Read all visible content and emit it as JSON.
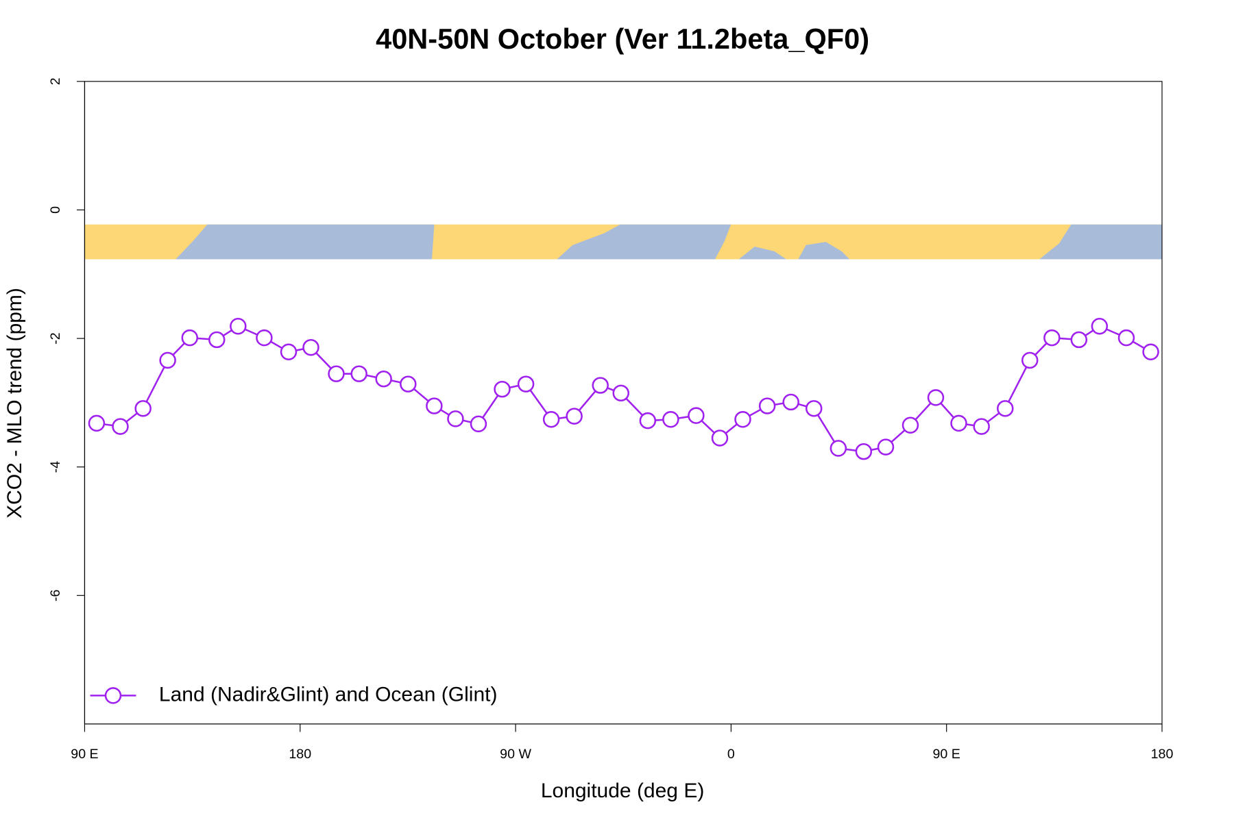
{
  "chart_data": {
    "type": "line",
    "title": "40N-50N October (Ver 11.2beta_QF0)",
    "x_label": "Longitude (deg E)",
    "y_label": "XCO2 - MLO trend (ppm)",
    "xlim": [
      90,
      540
    ],
    "xticks": [
      {
        "value": 90,
        "label": "90 E"
      },
      180,
      {
        "value": 270,
        "label": "90 W"
      },
      {
        "value": 360,
        "label": "0"
      },
      {
        "value": 450,
        "label": "90 E"
      },
      {
        "value": 540,
        "label": "180"
      }
    ],
    "ylim": [
      -8,
      2
    ],
    "yticks": [
      2,
      0,
      -2,
      -4,
      -6
    ],
    "legend": "bottomleft",
    "series": [
      {
        "name": "Land (Nadir&Glint) and Ocean (Glint)",
        "color": "#a020f0",
        "x": [
          95,
          104.9,
          114.4,
          124.7,
          133.9,
          145.2,
          154.1,
          165,
          175.2,
          184.5,
          195.1,
          204.6,
          214.9,
          225.1,
          236,
          244.9,
          254.5,
          264.4,
          274.3,
          284.9,
          294.5,
          305.4,
          314,
          325.2,
          334.8,
          345.4,
          355.3,
          364.9,
          375.1,
          385,
          394.6,
          404.8,
          415.4,
          424.6,
          434.9,
          445.5,
          455.1,
          464.6,
          474.5,
          484.8,
          494,
          505.3,
          513.9,
          525.1,
          535.3
        ],
        "values": [
          -3.32,
          -3.37,
          -3.09,
          -2.34,
          -1.99,
          -2.02,
          -1.81,
          -1.99,
          -2.21,
          -2.14,
          -2.55,
          -2.55,
          -2.63,
          -2.71,
          -3.05,
          -3.25,
          -3.33,
          -2.79,
          -2.71,
          -3.26,
          -3.21,
          -2.73,
          -2.85,
          -3.28,
          -3.26,
          -3.2,
          -3.55,
          -3.26,
          -3.05,
          -2.99,
          -3.09,
          -3.71,
          -3.76,
          -3.69,
          -3.35,
          -2.92,
          -3.32,
          -3.37,
          -3.09,
          -2.34,
          -1.99,
          -2.02,
          -1.81,
          -1.99,
          -2.21
        ]
      }
    ]
  }
}
